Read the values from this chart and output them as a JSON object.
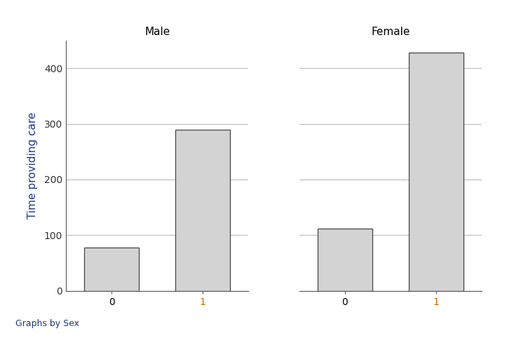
{
  "panels": [
    {
      "label": "Male",
      "categories": [
        "0",
        "1"
      ],
      "values": [
        77,
        290
      ]
    },
    {
      "label": "Female",
      "categories": [
        "0",
        "1"
      ],
      "values": [
        112,
        428
      ]
    }
  ],
  "ylabel": "Time providing care",
  "xlabel_annotation": "Graphs by Sex",
  "bar_color": "#d3d3d3",
  "bar_edgecolor": "#444444",
  "ylim": [
    0,
    450
  ],
  "yticks": [
    0,
    100,
    200,
    300,
    400
  ],
  "grid_color": "#bbbbbb",
  "panel_title_color": "#000000",
  "ylabel_color": "#1a3a8a",
  "xlabel_annotation_color": "#1a3a8a",
  "tick_label_color_0": "#000000",
  "tick_label_color_1": "#cc6600",
  "background_color": "#ffffff",
  "bar_width": 0.6
}
